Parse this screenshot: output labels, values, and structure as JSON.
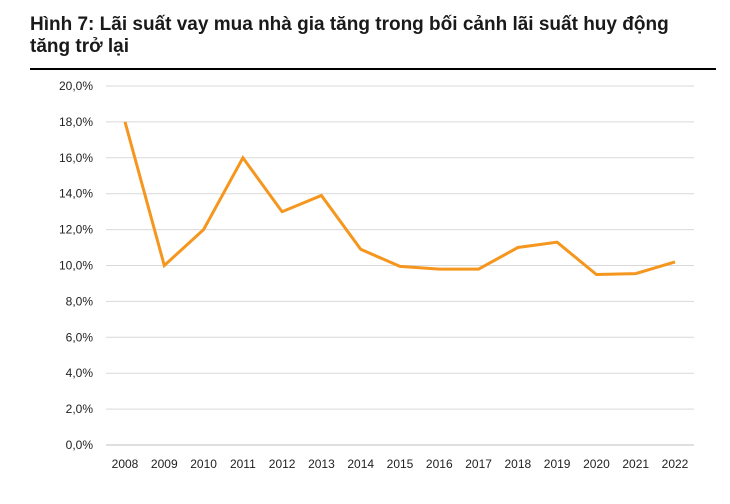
{
  "colors": {
    "line": "#F5961E",
    "grid": "#D9D9D9",
    "axis": "#BFBFBF",
    "title": "#1a1a1a"
  },
  "chart_data": {
    "type": "line",
    "title": "Hình 7: Lãi suất vay mua nhà gia tăng trong bối cảnh lãi suất huy động tăng trở lại",
    "xlabel": "",
    "ylabel": "",
    "x": [
      "2008",
      "2009",
      "2010",
      "2011",
      "2012",
      "2013",
      "2014",
      "2015",
      "2016",
      "2017",
      "2018",
      "2019",
      "2020",
      "2021",
      "2022"
    ],
    "series": [
      {
        "values": [
          18.0,
          10.0,
          12.0,
          16.0,
          13.0,
          13.9,
          10.9,
          9.95,
          9.8,
          9.8,
          11.0,
          11.3,
          9.5,
          9.55,
          10.2
        ]
      }
    ],
    "ylim": [
      0,
      20
    ],
    "yticks": [
      "0,0%",
      "2,0%",
      "4,0%",
      "6,0%",
      "8,0%",
      "10,0%",
      "12,0%",
      "14,0%",
      "16,0%",
      "18,0%",
      "20,0%"
    ],
    "grid": true,
    "legend": "none"
  }
}
